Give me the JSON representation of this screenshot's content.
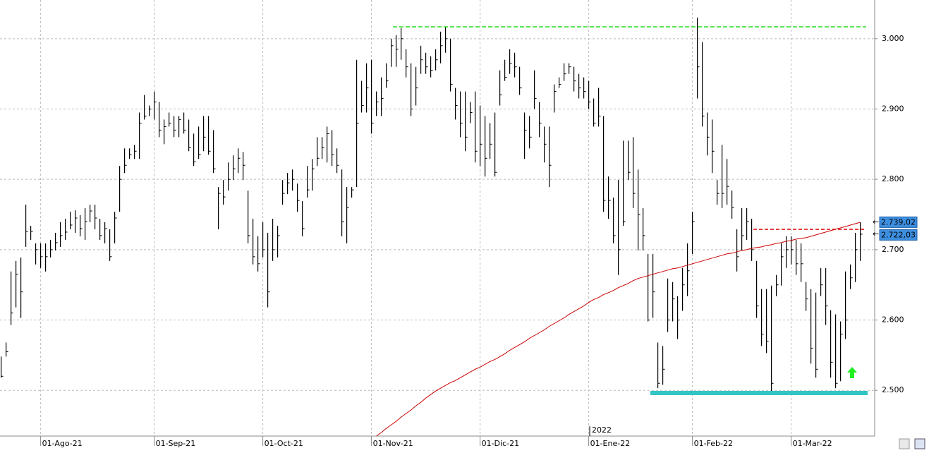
{
  "chart_data": {
    "type": "ohlc",
    "year_label": "2022",
    "categories": [
      null,
      null,
      null,
      null,
      null,
      null,
      null,
      null,
      "01-Ago-21",
      null,
      null,
      null,
      null,
      null,
      null,
      null,
      null,
      null,
      null,
      null,
      null,
      null,
      null,
      null,
      null,
      null,
      null,
      null,
      null,
      null,
      null,
      "01-Sep-21",
      null,
      null,
      null,
      null,
      null,
      null,
      null,
      null,
      null,
      null,
      null,
      null,
      null,
      null,
      null,
      null,
      null,
      null,
      null,
      null,
      null,
      "01-Oct-21",
      null,
      null,
      null,
      null,
      null,
      null,
      null,
      null,
      null,
      null,
      null,
      null,
      null,
      null,
      null,
      null,
      null,
      null,
      null,
      null,
      null,
      "01-Nov-21",
      null,
      null,
      null,
      null,
      null,
      null,
      null,
      null,
      null,
      null,
      null,
      null,
      null,
      null,
      null,
      null,
      null,
      null,
      null,
      null,
      null,
      "01-Dic-21",
      null,
      null,
      null,
      null,
      null,
      null,
      null,
      null,
      null,
      null,
      null,
      null,
      null,
      null,
      null,
      null,
      null,
      null,
      null,
      null,
      null,
      "01-Ene-22",
      null,
      null,
      null,
      null,
      null,
      null,
      null,
      null,
      null,
      null,
      null,
      null,
      null,
      null,
      null,
      null,
      null,
      null,
      null,
      null,
      "01-Feb-22",
      null,
      null,
      null,
      null,
      null,
      null,
      null,
      null,
      null,
      null,
      null,
      null,
      null,
      null,
      null,
      null,
      null,
      null,
      null,
      "01-Mar-22",
      null,
      null,
      null,
      null,
      null,
      null,
      null,
      null,
      null,
      null,
      null,
      null,
      null,
      null
    ],
    "price": {
      "color": "#000000",
      "last_label": "2.722,03",
      "high": [
        2548,
        2568,
        2669,
        2684,
        2689,
        2764,
        2734,
        2709,
        2709,
        2709,
        2714,
        2724,
        2739,
        2744,
        2754,
        2756,
        2749,
        2759,
        2764,
        2764,
        2744,
        2739,
        2729,
        2754,
        2819,
        2844,
        2844,
        2849,
        2895,
        2920,
        2905,
        2925,
        2910,
        2885,
        2895,
        2890,
        2890,
        2895,
        2885,
        2865,
        2875,
        2890,
        2890,
        2870,
        2789,
        2799,
        2824,
        2834,
        2844,
        2839,
        2784,
        2744,
        2719,
        2739,
        2724,
        2744,
        2734,
        2799,
        2809,
        2814,
        2794,
        2769,
        2819,
        2829,
        2860,
        2860,
        2875,
        2870,
        2844,
        2814,
        2789,
        2789,
        2970,
        2940,
        2965,
        2970,
        2925,
        2945,
        2965,
        3000,
        3005,
        3015,
        2985,
        2965,
        2960,
        2990,
        2980,
        2975,
        2985,
        3010,
        3017,
        3000,
        2930,
        2925,
        2925,
        2910,
        2925,
        2905,
        2890,
        2880,
        2895,
        2955,
        2970,
        2985,
        2980,
        2960,
        2895,
        2890,
        2955,
        2910,
        2875,
        2875,
        2935,
        2945,
        2965,
        2965,
        2960,
        2950,
        2945,
        2940,
        2915,
        2930,
        2890,
        2804,
        2774,
        2799,
        2855,
        2855,
        2860,
        2814,
        2759,
        2694,
        2694,
        2568,
        2563,
        2659,
        2654,
        2634,
        2674,
        2709,
        2754,
        3030,
        2995,
        2895,
        2885,
        2799,
        2849,
        2829,
        2784,
        2729,
        2759,
        2759,
        2744,
        2684,
        2644,
        2644,
        2649,
        2664,
        2709,
        2719,
        2719,
        2714,
        2709,
        2654,
        2644,
        2639,
        2674,
        2674,
        2614,
        2608,
        2598,
        2669,
        2679,
        2724,
        2739
      ],
      "low": [
        2518,
        2548,
        2593,
        2618,
        2603,
        2704,
        2714,
        2679,
        2674,
        2669,
        2689,
        2699,
        2704,
        2714,
        2729,
        2724,
        2719,
        2714,
        2739,
        2729,
        2714,
        2709,
        2684,
        2709,
        2754,
        2809,
        2829,
        2829,
        2829,
        2885,
        2890,
        2885,
        2860,
        2850,
        2875,
        2860,
        2860,
        2865,
        2840,
        2819,
        2829,
        2840,
        2835,
        2809,
        2729,
        2764,
        2784,
        2799,
        2809,
        2799,
        2709,
        2679,
        2669,
        2689,
        2618,
        2684,
        2689,
        2764,
        2779,
        2784,
        2754,
        2719,
        2774,
        2784,
        2819,
        2829,
        2824,
        2819,
        2809,
        2719,
        2709,
        2774,
        2789,
        2895,
        2895,
        2865,
        2890,
        2890,
        2930,
        2960,
        2960,
        2970,
        2945,
        2890,
        2905,
        2950,
        2950,
        2945,
        2955,
        2965,
        2980,
        2925,
        2885,
        2860,
        2840,
        2880,
        2824,
        2819,
        2804,
        2829,
        2804,
        2905,
        2940,
        2950,
        2945,
        2920,
        2829,
        2844,
        2900,
        2860,
        2824,
        2789,
        2895,
        2930,
        2940,
        2950,
        2925,
        2915,
        2915,
        2900,
        2875,
        2875,
        2754,
        2744,
        2709,
        2664,
        2734,
        2799,
        2759,
        2699,
        2699,
        2598,
        2603,
        2503,
        2508,
        2583,
        2598,
        2573,
        2613,
        2634,
        2694,
        2915,
        2875,
        2834,
        2809,
        2764,
        2759,
        2764,
        2744,
        2669,
        2699,
        2714,
        2684,
        2603,
        2563,
        2553,
        2498,
        2634,
        2649,
        2674,
        2679,
        2664,
        2654,
        2613,
        2538,
        2518,
        2634,
        2593,
        2518,
        2503,
        2513,
        2573,
        2644,
        2654,
        2684
      ],
      "close": [
        2520,
        2555,
        2610,
        2665,
        2640,
        2726,
        2726,
        2700,
        2690,
        2690,
        2700,
        2710,
        2720,
        2725,
        2735,
        2745,
        2730,
        2740,
        2755,
        2745,
        2720,
        2730,
        2690,
        2745,
        2800,
        2820,
        2835,
        2840,
        2880,
        2890,
        2900,
        2910,
        2870,
        2875,
        2880,
        2870,
        2885,
        2870,
        2845,
        2825,
        2835,
        2860,
        2840,
        2815,
        2780,
        2775,
        2800,
        2815,
        2830,
        2820,
        2720,
        2690,
        2680,
        2700,
        2640,
        2700,
        2720,
        2780,
        2795,
        2800,
        2770,
        2730,
        2785,
        2815,
        2830,
        2845,
        2865,
        2835,
        2820,
        2740,
        2760,
        2785,
        2880,
        2905,
        2930,
        2880,
        2910,
        2915,
        2940,
        2990,
        2985,
        3000,
        2960,
        2900,
        2930,
        2970,
        2960,
        2955,
        2970,
        2990,
        3000,
        2935,
        2905,
        2880,
        2860,
        2895,
        2840,
        2850,
        2830,
        2850,
        2810,
        2920,
        2945,
        2965,
        2960,
        2930,
        2870,
        2860,
        2915,
        2880,
        2850,
        2820,
        2925,
        2935,
        2950,
        2960,
        2940,
        2930,
        2925,
        2910,
        2880,
        2890,
        2770,
        2770,
        2720,
        2700,
        2740,
        2810,
        2780,
        2750,
        2720,
        2600,
        2640,
        2510,
        2530,
        2600,
        2630,
        2600,
        2650,
        2670,
        2740,
        2960,
        2890,
        2860,
        2840,
        2780,
        2780,
        2790,
        2760,
        2690,
        2720,
        2740,
        2700,
        2620,
        2580,
        2570,
        2510,
        2650,
        2690,
        2700,
        2700,
        2680,
        2680,
        2630,
        2560,
        2530,
        2650,
        2620,
        2540,
        2510,
        2580,
        2600,
        2660,
        2700,
        2722.03
      ]
    },
    "ma": {
      "color": "#cc0000",
      "last_label": "2.739,02",
      "values": [
        null,
        null,
        null,
        null,
        null,
        null,
        null,
        null,
        null,
        null,
        null,
        null,
        null,
        null,
        null,
        null,
        null,
        null,
        null,
        null,
        null,
        null,
        null,
        null,
        null,
        null,
        null,
        null,
        null,
        null,
        null,
        null,
        null,
        null,
        null,
        null,
        null,
        null,
        null,
        null,
        null,
        null,
        null,
        null,
        null,
        null,
        null,
        null,
        null,
        null,
        null,
        null,
        null,
        null,
        null,
        null,
        null,
        null,
        null,
        null,
        null,
        null,
        null,
        null,
        null,
        null,
        null,
        null,
        null,
        null,
        null,
        null,
        null,
        null,
        null,
        null,
        2435,
        2440,
        2446,
        2451,
        2456,
        2462,
        2467,
        2472,
        2478,
        2483,
        2489,
        2494,
        2499,
        2503,
        2507,
        2511,
        2514,
        2518,
        2522,
        2526,
        2530,
        2533,
        2537,
        2541,
        2544,
        2548,
        2552,
        2557,
        2561,
        2565,
        2569,
        2574,
        2578,
        2582,
        2586,
        2591,
        2595,
        2599,
        2603,
        2608,
        2612,
        2616,
        2620,
        2625,
        2629,
        2632,
        2636,
        2639,
        2642,
        2646,
        2649,
        2652,
        2656,
        2659,
        2661,
        2663,
        2665,
        2667,
        2669,
        2671,
        2673,
        2674,
        2676,
        2678,
        2680,
        2682,
        2684,
        2686,
        2688,
        2690,
        2692,
        2694,
        2695,
        2697,
        2699,
        2700,
        2702,
        2703,
        2704,
        2706,
        2707,
        2709,
        2710,
        2712,
        2713,
        2715,
        2716,
        2717,
        2719,
        2721,
        2723,
        2725,
        2727,
        2729,
        2731,
        2733,
        2735,
        2737,
        2739.02
      ]
    },
    "ylim": [
      2435,
      3055
    ],
    "yticks": [
      {
        "value": 2500,
        "label": "2.500"
      },
      {
        "value": 2600,
        "label": "2.600"
      },
      {
        "value": 2700,
        "label": "2.700"
      },
      {
        "value": 2800,
        "label": "2.800"
      },
      {
        "value": 2900,
        "label": "2.900"
      },
      {
        "value": 3000,
        "label": "3.000"
      }
    ],
    "grid": true
  }
}
